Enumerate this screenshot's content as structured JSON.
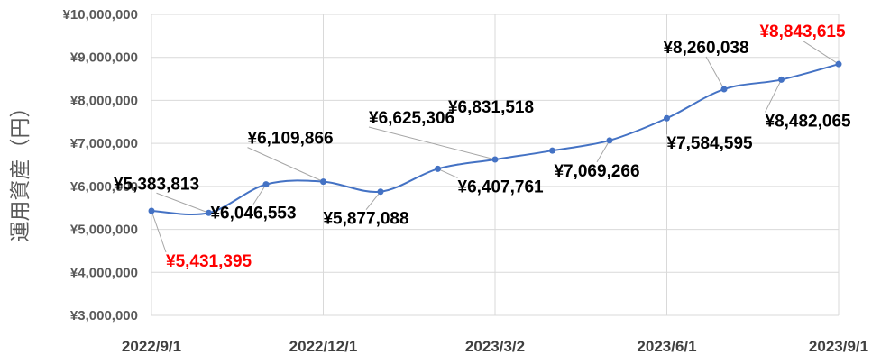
{
  "chart_data": {
    "type": "line",
    "title": "",
    "xlabel": "",
    "ylabel": "運用資産（円）",
    "ylim": [
      3000000,
      10000000
    ],
    "y_ticks": [
      3000000,
      4000000,
      5000000,
      6000000,
      7000000,
      8000000,
      9000000,
      10000000
    ],
    "y_tick_labels": [
      "¥3,000,000",
      "¥4,000,000",
      "¥5,000,000",
      "¥6,000,000",
      "¥7,000,000",
      "¥8,000,000",
      "¥9,000,000",
      "¥10,000,000"
    ],
    "x_tick_labels": [
      "2022/9/1",
      "2022/12/1",
      "2023/3/2",
      "2023/6/1",
      "2023/9/1"
    ],
    "grid": true,
    "line_color": "#4472c4",
    "highlight_color": "#ff0000",
    "label_color": "#000000",
    "series": [
      {
        "x": [
          "2022/9/1",
          "2022/10/1",
          "2022/11/1",
          "2022/12/1",
          "2023/1/1",
          "2023/2/1",
          "2023/3/2",
          "2023/4/1",
          "2023/5/1",
          "2023/6/1",
          "2023/7/1",
          "2023/8/1",
          "2023/9/1"
        ],
        "values": [
          5431395,
          5383813,
          6046553,
          6109866,
          5877088,
          6407761,
          6625306,
          6831518,
          7069266,
          7584595,
          8260038,
          8482065,
          8843615
        ],
        "labels": [
          "¥5,431,395",
          "¥5,383,813",
          "¥6,046,553",
          "¥6,109,866",
          "¥5,877,088",
          "¥6,407,761",
          "¥6,625,306",
          "¥6,831,518",
          "¥7,069,266",
          "¥7,584,595",
          "¥8,260,038",
          "¥8,482,065",
          "¥8,843,615"
        ],
        "highlighted": [
          true,
          false,
          false,
          false,
          false,
          false,
          false,
          false,
          false,
          false,
          false,
          false,
          true
        ]
      }
    ]
  }
}
